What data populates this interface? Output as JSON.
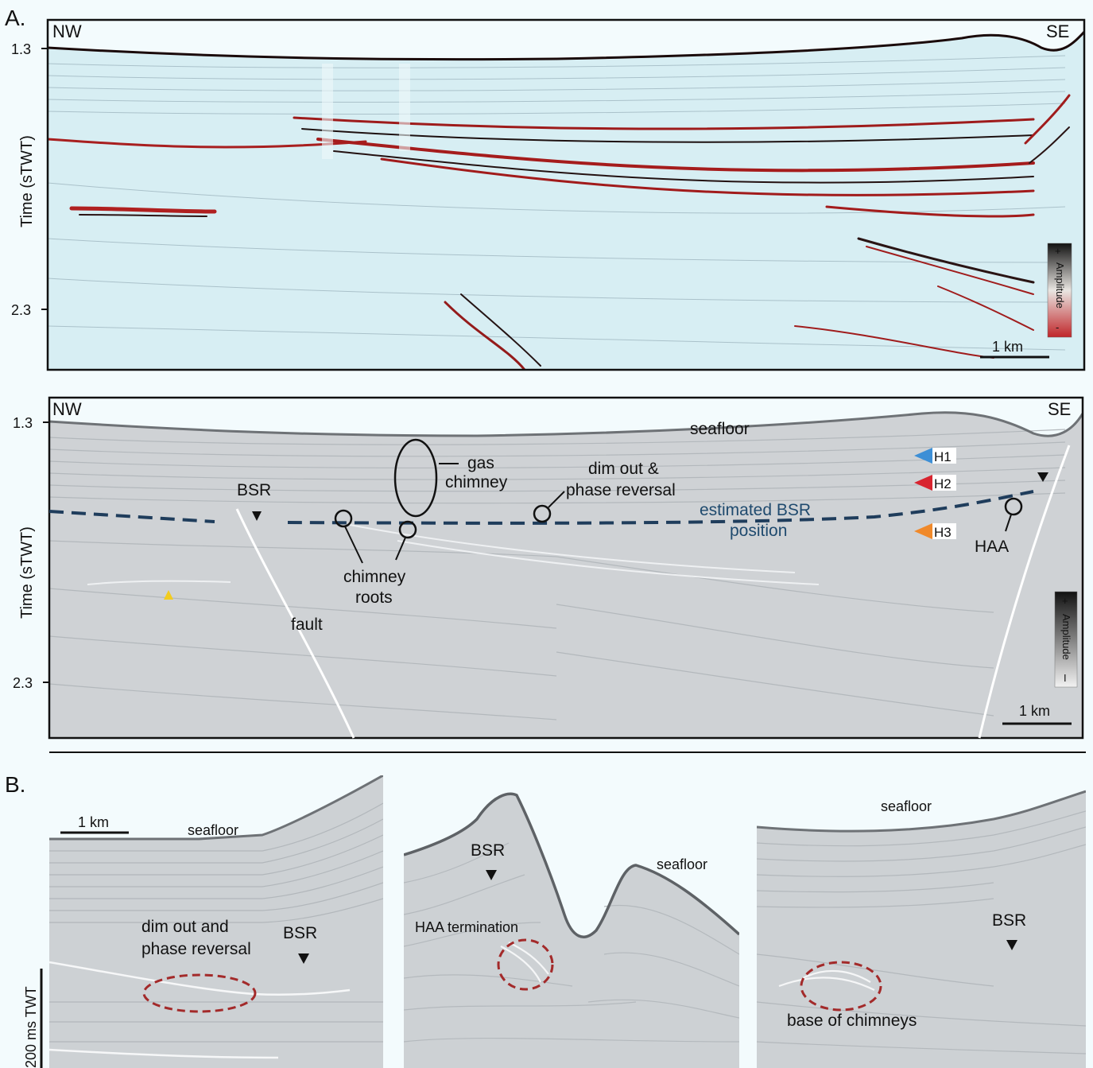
{
  "panel_a": {
    "label": "A.",
    "seismic_color": {
      "dir_left": "NW",
      "dir_right": "SE",
      "tick_top": "1.3",
      "tick_bottom": "2.3",
      "ylabel": "Time (sTWT)",
      "scale_bar": "1 km",
      "colorbar": {
        "plus": "+",
        "label": "Amplitude",
        "minus": "-"
      },
      "colors": {
        "bg": "#d7eef3",
        "reflector": "#b01e1e"
      }
    },
    "seismic_gray": {
      "dir_left": "NW",
      "dir_right": "SE",
      "tick_top": "1.3",
      "tick_bottom": "2.3",
      "ylabel": "Time (sTWT)",
      "scale_bar": "1 km",
      "colorbar": {
        "plus": "+",
        "label": "Amplitude",
        "minus": "I"
      },
      "annotations": {
        "seafloor": "seafloor",
        "gas_chimney_1": "gas",
        "gas_chimney_2": "chimney",
        "dim_out_1": "dim out &",
        "dim_out_2": "phase reversal",
        "bsr": "BSR",
        "estimated_bsr_1": "estimated BSR",
        "estimated_bsr_2": "position",
        "chimney_roots_1": "chimney",
        "chimney_roots_2": "roots",
        "fault": "fault",
        "haa": "HAA"
      },
      "horizons": [
        {
          "label": "H1",
          "color": "#3d8fd6"
        },
        {
          "label": "H2",
          "color": "#d8242f"
        },
        {
          "label": "H3",
          "color": "#f0892a"
        }
      ],
      "colors": {
        "bsr_line": "#1f3d5c",
        "marker_yellow": "#f2cc1f"
      }
    }
  },
  "panel_b": {
    "label": "B.",
    "vertical_scale": "200 ms TWT",
    "left": {
      "scale_bar": "1 km",
      "seafloor": "seafloor",
      "dim_out_1": "dim out and",
      "dim_out_2": "phase reversal",
      "bsr": "BSR"
    },
    "middle": {
      "bsr": "BSR",
      "seafloor": "seafloor",
      "haa": "HAA termination"
    },
    "right": {
      "seafloor": "seafloor",
      "bsr": "BSR",
      "base": "base of chimneys"
    },
    "colors": {
      "ellipse": "#a32a2a"
    }
  }
}
